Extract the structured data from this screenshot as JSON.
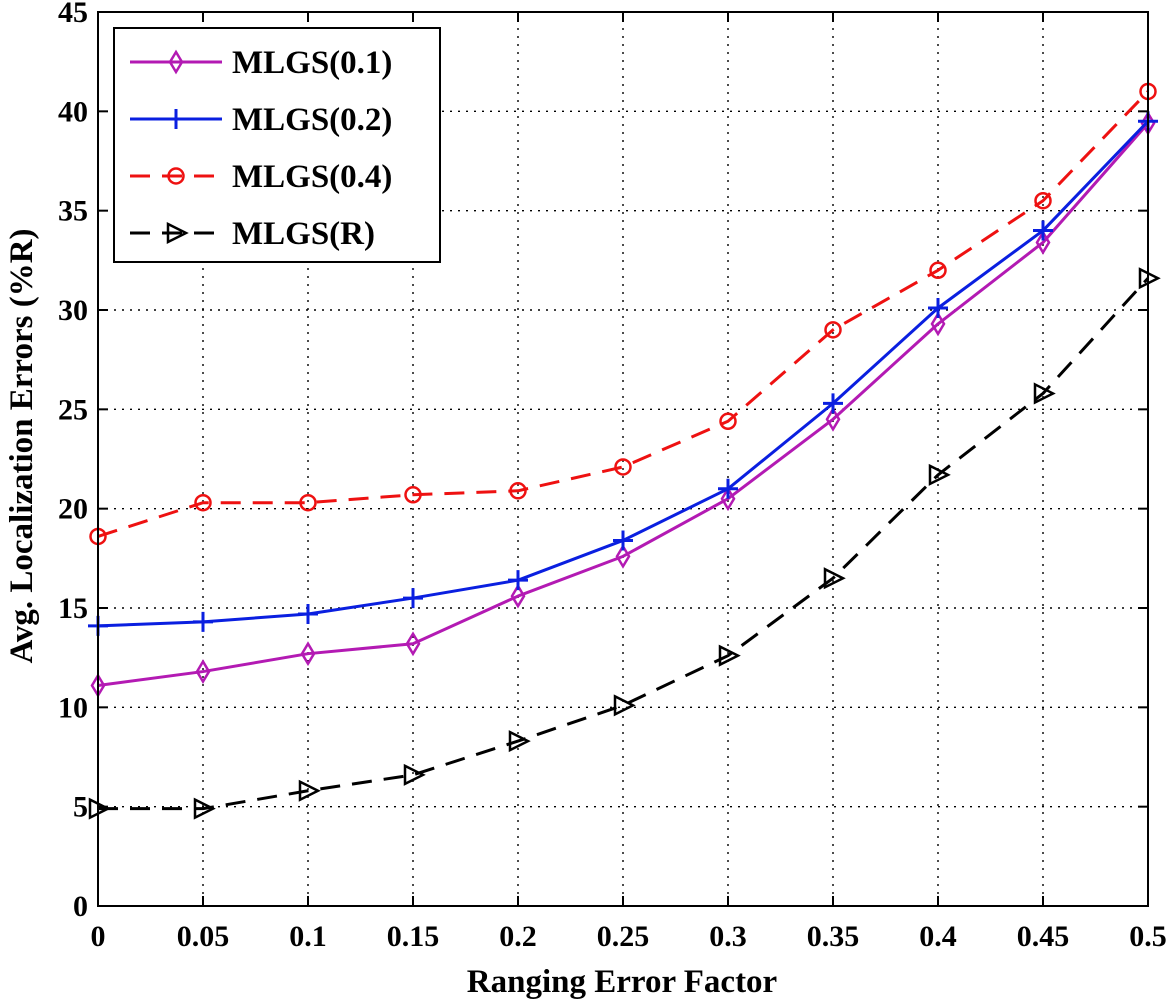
{
  "chart_data": {
    "type": "line",
    "title": "",
    "xlabel": "Ranging Error Factor",
    "ylabel": "Avg. Localization Errors (%R)",
    "xlim": [
      0,
      0.5
    ],
    "ylim": [
      0,
      45
    ],
    "grid": true,
    "legend_position": "top-left",
    "x": [
      0,
      0.05,
      0.1,
      0.15,
      0.2,
      0.25,
      0.3,
      0.35,
      0.4,
      0.45,
      0.5
    ],
    "x_tick_labels": [
      "0",
      "0.05",
      "0.1",
      "0.15",
      "0.2",
      "0.25",
      "0.3",
      "0.35",
      "0.4",
      "0.45",
      "0.5"
    ],
    "y_tick_labels": [
      "0",
      "5",
      "10",
      "15",
      "20",
      "25",
      "30",
      "35",
      "40",
      "45"
    ],
    "series": [
      {
        "name": "MLGS(0.1)",
        "color": "#b31ab3",
        "line_style": "solid",
        "marker": "diamond",
        "values": [
          11.1,
          11.8,
          12.7,
          13.2,
          15.6,
          17.6,
          20.5,
          24.5,
          29.3,
          33.4,
          39.4
        ]
      },
      {
        "name": "MLGS(0.2)",
        "color": "#0a1fe0",
        "line_style": "solid",
        "marker": "plus",
        "values": [
          14.1,
          14.3,
          14.7,
          15.5,
          16.4,
          18.4,
          21.0,
          25.3,
          30.1,
          34.0,
          39.5
        ]
      },
      {
        "name": "MLGS(0.4)",
        "color": "#ee1111",
        "line_style": "dashed",
        "marker": "circle",
        "values": [
          18.6,
          20.3,
          20.3,
          20.7,
          20.9,
          22.1,
          24.4,
          29.0,
          32.0,
          35.5,
          41.0
        ]
      },
      {
        "name": "MLGS(R)",
        "color": "#000000",
        "line_style": "dashed",
        "marker": "triangle-right",
        "values": [
          4.9,
          4.9,
          5.8,
          6.6,
          8.3,
          10.1,
          12.6,
          16.5,
          21.7,
          25.8,
          31.6
        ]
      }
    ]
  }
}
